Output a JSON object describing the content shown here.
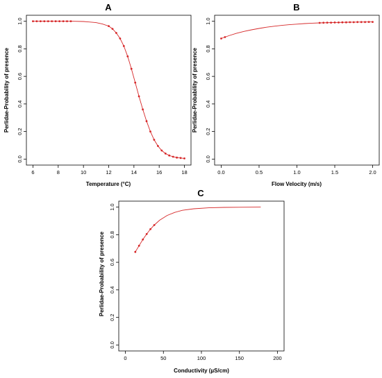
{
  "chart_data": [
    {
      "panel": "A",
      "type": "line",
      "xlabel": "Temperature (°C)",
      "ylabel": "Perlidae-Probability of presence",
      "xlim": [
        6,
        18
      ],
      "ylim": [
        0,
        1
      ],
      "xticks": [
        6,
        8,
        10,
        12,
        14,
        16,
        18
      ],
      "yticks": [
        0.0,
        0.2,
        0.4,
        0.6,
        0.8,
        1.0
      ],
      "grid": false,
      "legend": "none",
      "line": {
        "x": [
          6.0,
          7.0,
          8.0,
          9.0,
          10.0,
          11.0,
          11.5,
          12.0,
          12.3,
          12.6,
          12.9,
          13.2,
          13.5,
          13.8,
          14.1,
          14.4,
          14.7,
          15.0,
          15.3,
          15.6,
          15.9,
          16.2,
          16.5,
          16.8,
          17.1,
          17.4,
          17.7,
          18.0
        ],
        "y": [
          1.0,
          1.0,
          1.0,
          1.0,
          0.998,
          0.99,
          0.98,
          0.965,
          0.945,
          0.915,
          0.875,
          0.82,
          0.745,
          0.655,
          0.555,
          0.455,
          0.36,
          0.275,
          0.2,
          0.14,
          0.095,
          0.062,
          0.04,
          0.026,
          0.017,
          0.011,
          0.008,
          0.005
        ]
      },
      "points": {
        "x": [
          6.0,
          6.3,
          6.6,
          6.9,
          7.2,
          7.5,
          7.8,
          8.1,
          8.4,
          8.7,
          9.0,
          12.0,
          12.3,
          12.6,
          12.9,
          13.2,
          13.5,
          13.8,
          14.1,
          14.4,
          14.7,
          15.0,
          15.3,
          15.6,
          15.9,
          16.2,
          16.5,
          16.8,
          17.1,
          17.4,
          17.7,
          18.0
        ],
        "y": [
          1.0,
          1.0,
          1.0,
          1.0,
          1.0,
          1.0,
          1.0,
          1.0,
          1.0,
          1.0,
          1.0,
          0.965,
          0.945,
          0.915,
          0.875,
          0.82,
          0.745,
          0.655,
          0.555,
          0.455,
          0.36,
          0.275,
          0.2,
          0.14,
          0.095,
          0.062,
          0.04,
          0.026,
          0.017,
          0.011,
          0.008,
          0.005
        ]
      },
      "color": "#d62728"
    },
    {
      "panel": "B",
      "type": "line",
      "xlabel": "Flow Velocity (m/s)",
      "ylabel": "Perlidae-Probability of presence",
      "xlim": [
        0,
        2
      ],
      "ylim": [
        0,
        1
      ],
      "xticks": [
        0.0,
        0.5,
        1.0,
        1.5,
        2.0
      ],
      "yticks": [
        0.0,
        0.2,
        0.4,
        0.6,
        0.8,
        1.0
      ],
      "grid": false,
      "legend": "none",
      "line": {
        "x": [
          0.0,
          0.05,
          0.1,
          0.2,
          0.3,
          0.4,
          0.5,
          0.6,
          0.7,
          0.8,
          0.9,
          1.0,
          1.1,
          1.2,
          1.3,
          1.5,
          1.7,
          2.0
        ],
        "y": [
          0.875,
          0.885,
          0.895,
          0.912,
          0.926,
          0.938,
          0.948,
          0.957,
          0.964,
          0.97,
          0.975,
          0.979,
          0.983,
          0.986,
          0.988,
          0.991,
          0.993,
          0.995
        ]
      },
      "points": {
        "x": [
          0.0,
          0.05,
          1.3,
          1.35,
          1.4,
          1.45,
          1.5,
          1.55,
          1.6,
          1.65,
          1.7,
          1.75,
          1.8,
          1.85,
          1.9,
          1.95,
          2.0
        ],
        "y": [
          0.875,
          0.885,
          0.988,
          0.989,
          0.99,
          0.99,
          0.991,
          0.991,
          0.992,
          0.992,
          0.993,
          0.993,
          0.994,
          0.994,
          0.994,
          0.995,
          0.995
        ]
      },
      "color": "#d62728"
    },
    {
      "panel": "C",
      "type": "line",
      "xlabel": "Conductivity (µS/cm)",
      "ylabel": "Perlidae-Probability of presence",
      "xlim": [
        0,
        200
      ],
      "ylim": [
        0,
        1
      ],
      "xticks": [
        0,
        50,
        100,
        150,
        200
      ],
      "yticks": [
        0.0,
        0.2,
        0.4,
        0.6,
        0.8,
        1.0
      ],
      "grid": false,
      "legend": "none",
      "line": {
        "x": [
          13,
          18,
          23,
          28,
          33,
          38,
          45,
          55,
          65,
          75,
          90,
          110,
          130,
          150,
          178
        ],
        "y": [
          0.675,
          0.72,
          0.765,
          0.805,
          0.84,
          0.87,
          0.905,
          0.94,
          0.962,
          0.977,
          0.988,
          0.995,
          0.998,
          0.999,
          1.0
        ]
      },
      "points": {
        "x": [
          13,
          18,
          23,
          28,
          33,
          38
        ],
        "y": [
          0.675,
          0.72,
          0.765,
          0.805,
          0.84,
          0.87
        ]
      },
      "color": "#d62728"
    }
  ]
}
